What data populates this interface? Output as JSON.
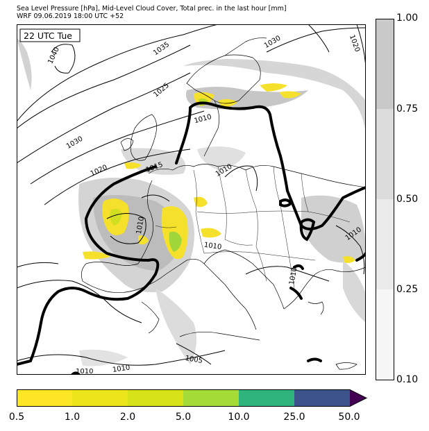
{
  "header": {
    "line1": "Sea Level Pressure [hPa], Mid-Level Cloud Cover, Total prec. in the last hour [mm]",
    "line2": "WRF 09.06.2019 18:00 UTC +52"
  },
  "map": {
    "valid_time_label": "22 UTC Tue",
    "isobar_labels": [
      "1040",
      "1035",
      "1030",
      "1025",
      "1030",
      "1020",
      "1015",
      "1010",
      "1010",
      "1010",
      "1010",
      "1010",
      "1030",
      "1020",
      "1010",
      "1010",
      "1005",
      "1010",
      "1010",
      "1010"
    ],
    "colors": {
      "ocean": "#ffffff",
      "land_border": "#000000",
      "cloud_light": "#e6e6e6",
      "cloud_mid": "#cfcfcf",
      "cloud_dark": "#b4b4b4",
      "precip_light": "#f5e12b",
      "precip_mid": "#c9dd1c",
      "precip_heavy": "#9fd63a"
    }
  },
  "cloud_colorbar": {
    "labels": [
      "1.00",
      "0.75",
      "0.50",
      "0.25",
      "0.10"
    ],
    "colors": [
      "#c9c9c9",
      "#dcdcdc",
      "#ebebeb",
      "#f7f7f7"
    ]
  },
  "precip_colorbar": {
    "labels": [
      "0.5",
      "1.0",
      "2.0",
      "5.0",
      "10.0",
      "25.0",
      "50.0"
    ],
    "colors": [
      "#fde725",
      "#ede51b",
      "#d8e219",
      "#a5db36",
      "#2eb37c",
      "#3b528b",
      "#440154"
    ]
  }
}
